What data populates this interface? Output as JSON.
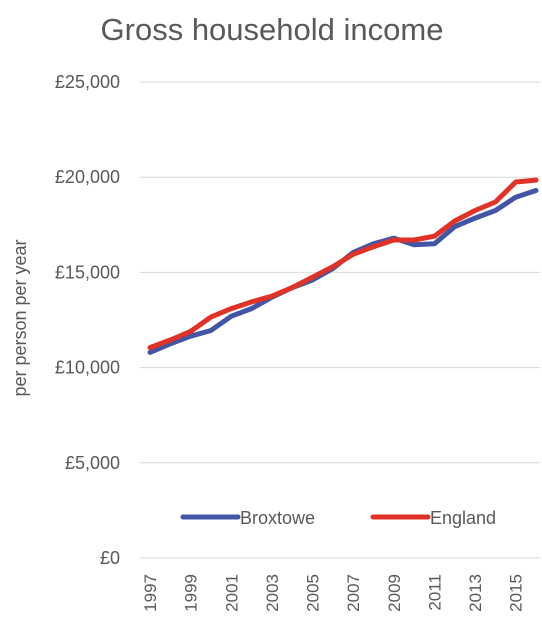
{
  "chart_data": {
    "type": "line",
    "title": "Gross household income",
    "xlabel": "",
    "ylabel": "per person per year",
    "x": [
      1997,
      1998,
      1999,
      2000,
      2001,
      2002,
      2003,
      2004,
      2005,
      2006,
      2007,
      2008,
      2009,
      2010,
      2011,
      2012,
      2013,
      2014,
      2015,
      2016
    ],
    "x_tick_labels": [
      "1997",
      "1999",
      "2001",
      "2003",
      "2005",
      "2007",
      "2009",
      "2011",
      "2013",
      "2015"
    ],
    "ylim": [
      0,
      25000
    ],
    "y_tick_labels": [
      "£0",
      "£5,000",
      "£10,000",
      "£15,000",
      "£20,000",
      "£25,000"
    ],
    "y_tick_values": [
      0,
      5000,
      10000,
      15000,
      20000,
      25000
    ],
    "grid": true,
    "legend_position": "bottom-inside",
    "series": [
      {
        "name": "Broxtowe",
        "color": "#4355a5",
        "values": [
          10800,
          11250,
          11650,
          11950,
          12700,
          13100,
          13700,
          14200,
          14600,
          15200,
          16050,
          16500,
          16800,
          16450,
          16500,
          17400,
          17850,
          18250,
          18950,
          19300
        ]
      },
      {
        "name": "England",
        "color": "#e03226",
        "values": [
          11050,
          11450,
          11900,
          12650,
          13100,
          13450,
          13750,
          14200,
          14750,
          15300,
          15950,
          16350,
          16700,
          16700,
          16900,
          17700,
          18250,
          18700,
          19750,
          19850
        ]
      }
    ]
  }
}
